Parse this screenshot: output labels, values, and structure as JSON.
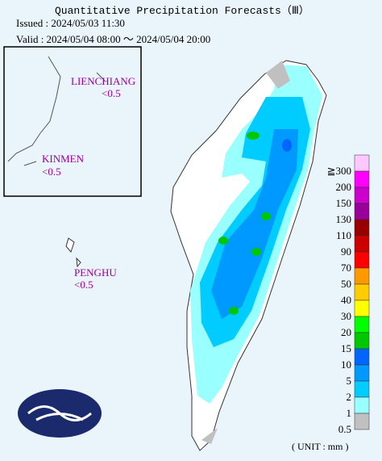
{
  "header": {
    "title": "Quantitative Precipitation Forecasts（Ⅲ）",
    "issued": "Issued : 2024/05/03 11:30",
    "valid": "Valid : 2024/05/04 08:00 ～ 2024/05/04 20:00"
  },
  "labels": [
    {
      "name": "LIENCHIANG",
      "value": "<0.5"
    },
    {
      "name": "KINMEN",
      "value": "<0.5"
    },
    {
      "name": "PENGHU",
      "value": "<0.5"
    }
  ],
  "legend": {
    "unit": "( UNIT : mm )",
    "levels": [
      {
        "label": "≧300",
        "color": "#ffc8ff"
      },
      {
        "label": "200",
        "color": "#ff00ff"
      },
      {
        "label": "150",
        "color": "#cc00cc"
      },
      {
        "label": "130",
        "color": "#990099"
      },
      {
        "label": "110",
        "color": "#990000"
      },
      {
        "label": "90",
        "color": "#cc0000"
      },
      {
        "label": "70",
        "color": "#ff0000"
      },
      {
        "label": "50",
        "color": "#ff9900"
      },
      {
        "label": "40",
        "color": "#ffcc00"
      },
      {
        "label": "30",
        "color": "#ffff00"
      },
      {
        "label": "20",
        "color": "#00ff00"
      },
      {
        "label": "15",
        "color": "#00c800"
      },
      {
        "label": "10",
        "color": "#0066ff"
      },
      {
        "label": "5",
        "color": "#0099ff"
      },
      {
        "label": "2",
        "color": "#00ccff"
      },
      {
        "label": "1",
        "color": "#99ffff"
      },
      {
        "label": "0.5",
        "color": "#c0c0c0"
      }
    ]
  }
}
